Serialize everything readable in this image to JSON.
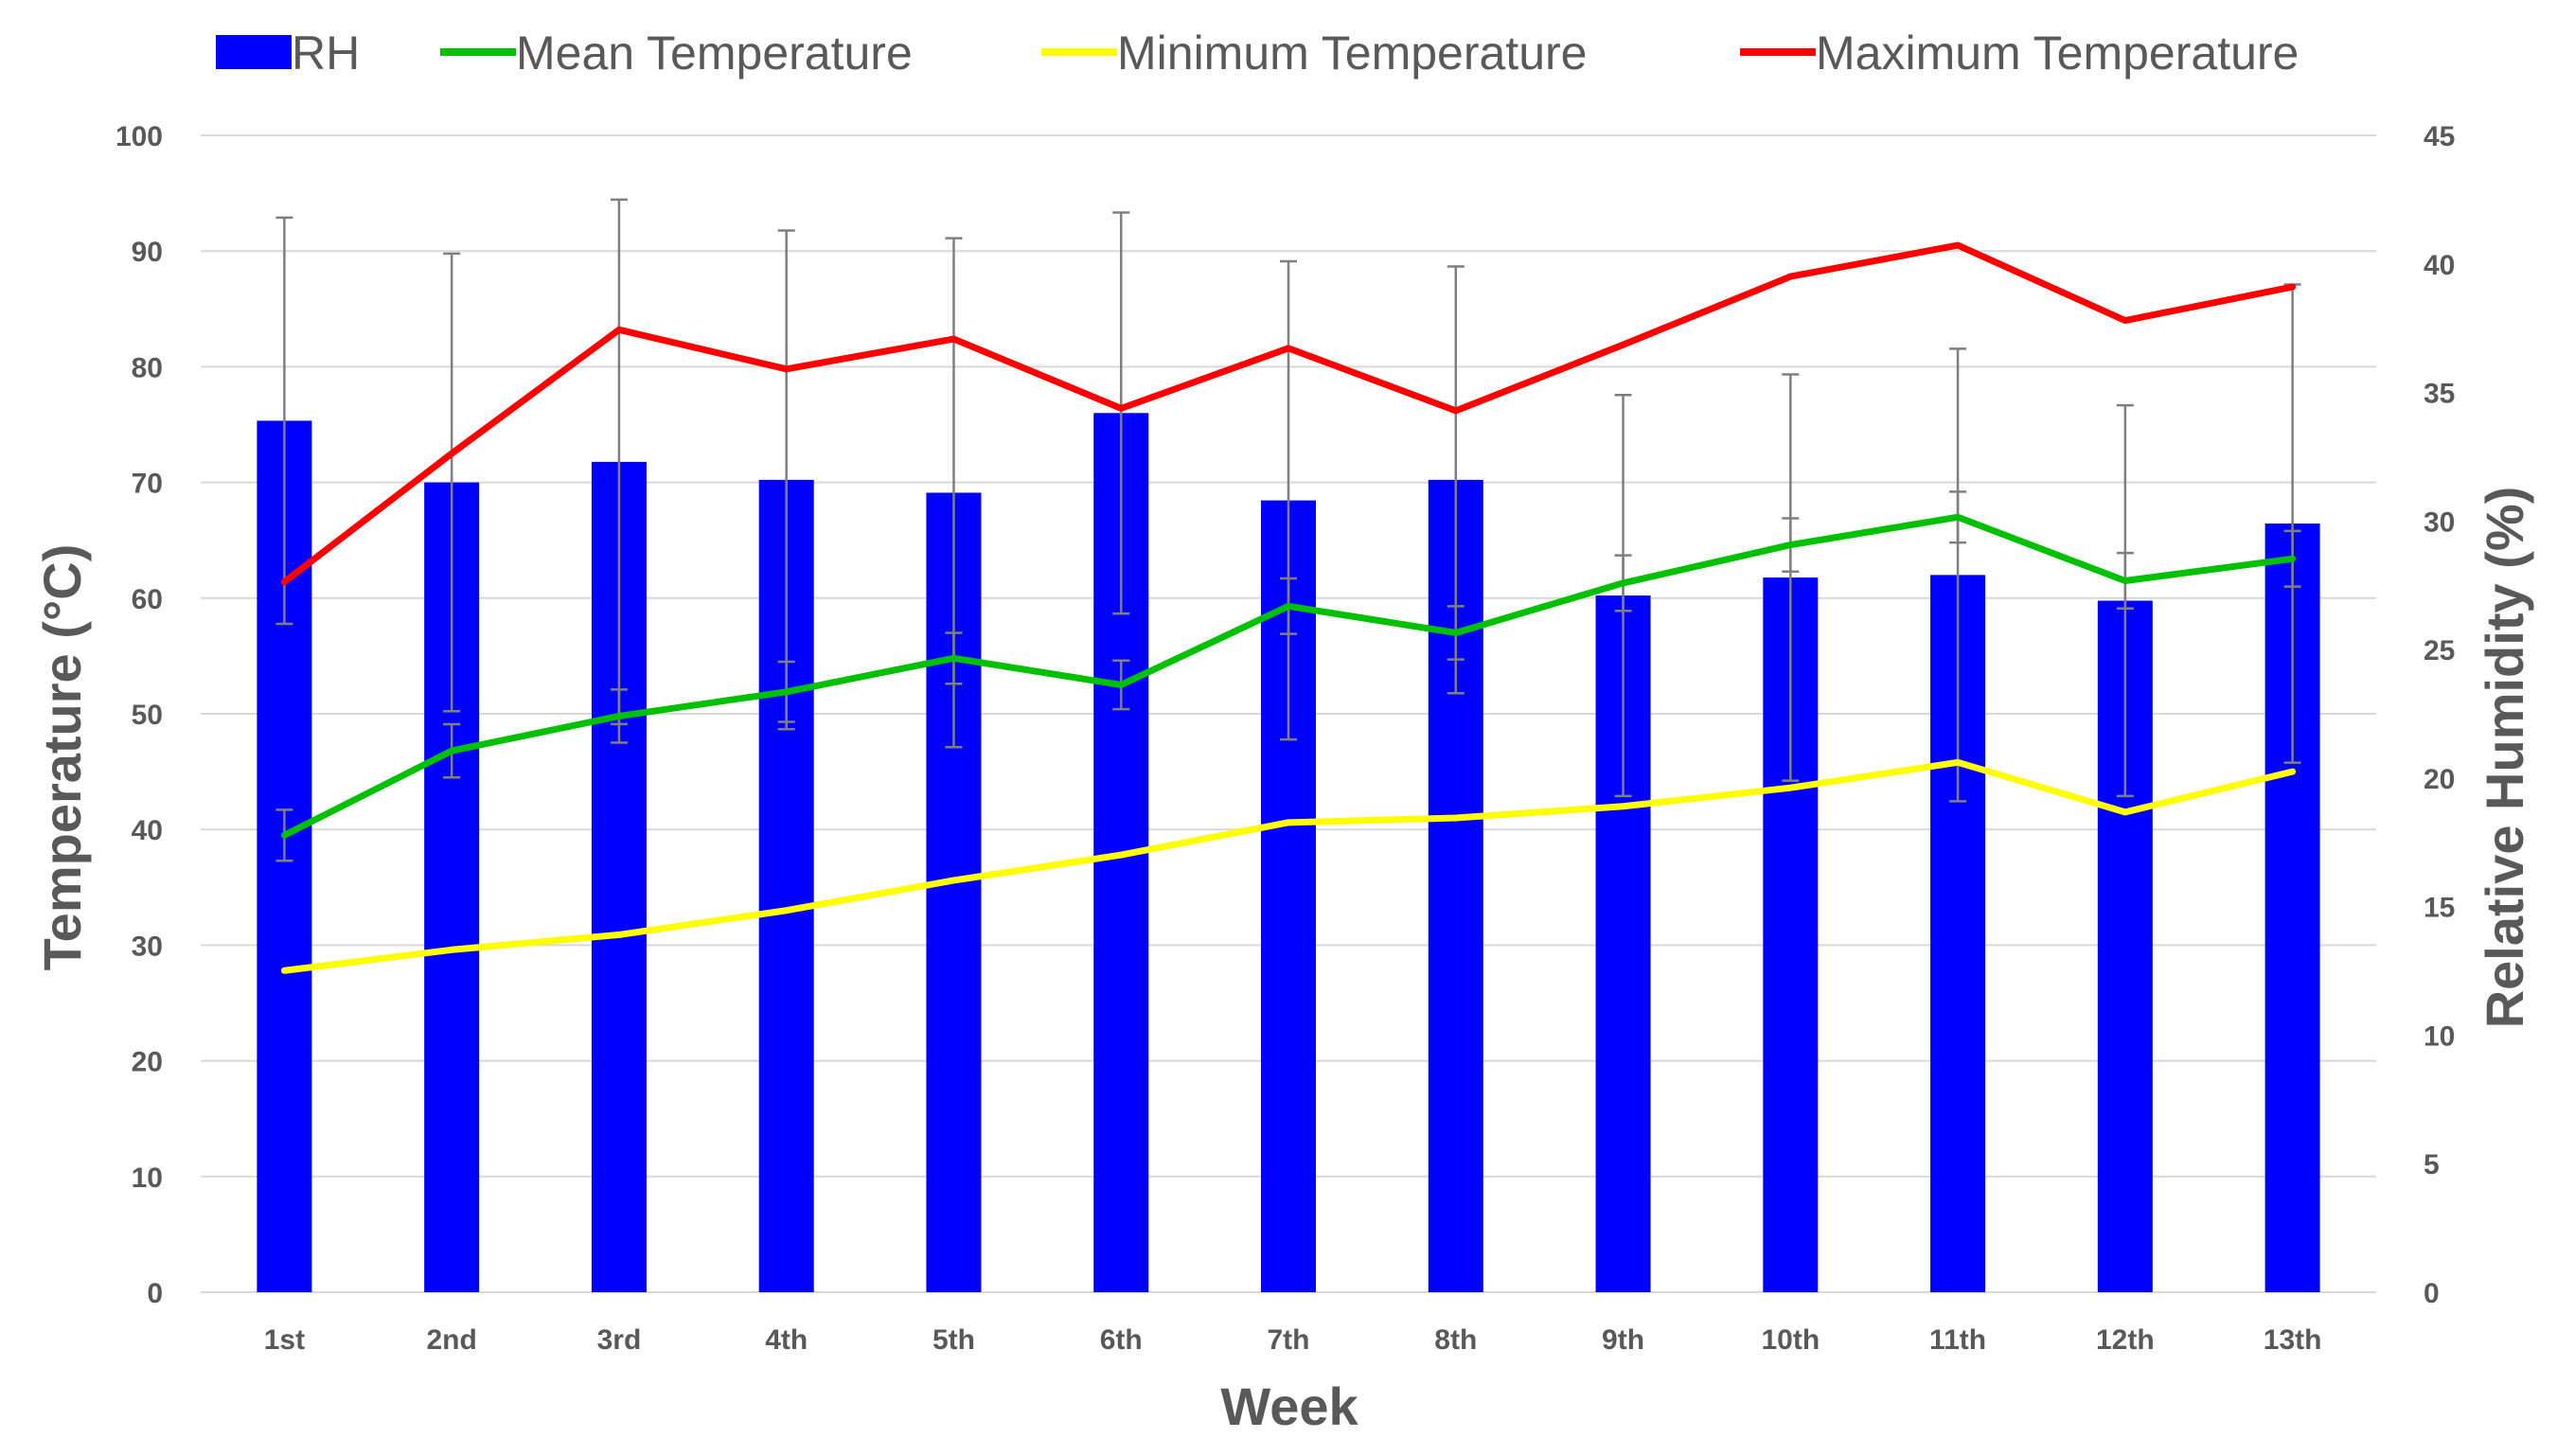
{
  "chart_data": {
    "type": "bar",
    "categories": [
      "1st",
      "2nd",
      "3rd",
      "4th",
      "5th",
      "6th",
      "7th",
      "8th",
      "9th",
      "10th",
      "11th",
      "12th",
      "13th"
    ],
    "xlabel": "Week",
    "ylabel": "Temperature (°C)",
    "y2label": "Relative Humidity (%)",
    "ylim": [
      0,
      100
    ],
    "y2lim": [
      0,
      45
    ],
    "yticks": [
      0,
      10,
      20,
      30,
      40,
      50,
      60,
      70,
      80,
      90,
      100
    ],
    "y2ticks": [
      0,
      5,
      10,
      15,
      20,
      25,
      30,
      35,
      40,
      45
    ],
    "grid": true,
    "legend_position": "top",
    "series": [
      {
        "name": "RH",
        "kind": "bar",
        "axis": "right",
        "color": "#0000ff",
        "values": [
          33.9,
          31.5,
          32.3,
          31.6,
          31.1,
          34.2,
          30.8,
          31.6,
          27.1,
          27.8,
          27.9,
          26.9,
          29.9
        ],
        "error": [
          7.9,
          8.9,
          10.2,
          9.7,
          9.9,
          7.8,
          9.3,
          8.3,
          7.8,
          7.9,
          8.8,
          7.6,
          9.3
        ]
      },
      {
        "name": "Mean Temperature",
        "kind": "line",
        "axis": "left",
        "color": "#00c000",
        "values": [
          39.5,
          46.8,
          49.8,
          51.9,
          54.8,
          52.5,
          59.3,
          57.0,
          61.3,
          64.6,
          67.0,
          61.5,
          63.4
        ],
        "error": [
          2.2,
          2.3,
          2.3,
          2.6,
          2.2,
          2.1,
          2.4,
          2.3,
          2.4,
          2.3,
          2.2,
          2.4,
          2.4
        ]
      },
      {
        "name": "Minimum Temperature",
        "kind": "line",
        "axis": "left",
        "color": "#ffff00",
        "values": [
          27.8,
          29.6,
          30.9,
          33.0,
          35.6,
          37.8,
          40.6,
          41.0,
          42.0,
          43.6,
          45.8,
          41.5,
          45.0
        ]
      },
      {
        "name": "Maximum Temperature",
        "kind": "line",
        "axis": "left",
        "color": "#ff0000",
        "values": [
          61.4,
          72.5,
          83.2,
          79.8,
          82.4,
          76.4,
          81.6,
          76.2,
          81.9,
          87.8,
          90.5,
          84.0,
          86.9
        ]
      }
    ]
  }
}
